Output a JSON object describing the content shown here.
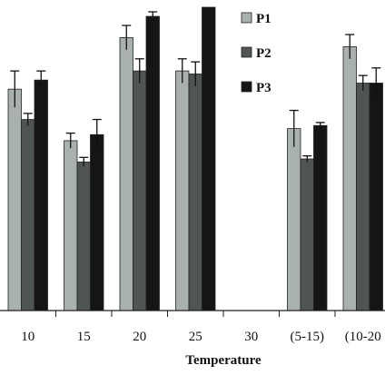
{
  "chart_data": {
    "type": "bar",
    "title": "",
    "xlabel": "Temperature",
    "ylabel": "",
    "categories": [
      "10",
      "15",
      "20",
      "25",
      "30",
      "(5-15)",
      "(10-20"
    ],
    "series": [
      {
        "name": "P1",
        "color": "#a9b1ad",
        "values": [
          0.73,
          0.56,
          0.9,
          0.79,
          null,
          0.6,
          0.87
        ],
        "errors": [
          0.06,
          0.025,
          0.04,
          0.04,
          null,
          0.06,
          0.04
        ]
      },
      {
        "name": "P2",
        "color": "#4f5552",
        "values": [
          0.63,
          0.49,
          0.79,
          0.78,
          null,
          0.5,
          0.75
        ],
        "errors": [
          0.02,
          0.015,
          0.04,
          0.04,
          null,
          0.01,
          0.025
        ]
      },
      {
        "name": "P3",
        "color": "#151515",
        "values": [
          0.76,
          0.58,
          0.97,
          1.0,
          null,
          0.61,
          0.75
        ],
        "errors": [
          0.03,
          0.05,
          0.015,
          0.0,
          null,
          0.01,
          0.05
        ]
      }
    ],
    "ylim": [
      0,
      1.0
    ],
    "grid": false,
    "legend_position": "top-right"
  }
}
